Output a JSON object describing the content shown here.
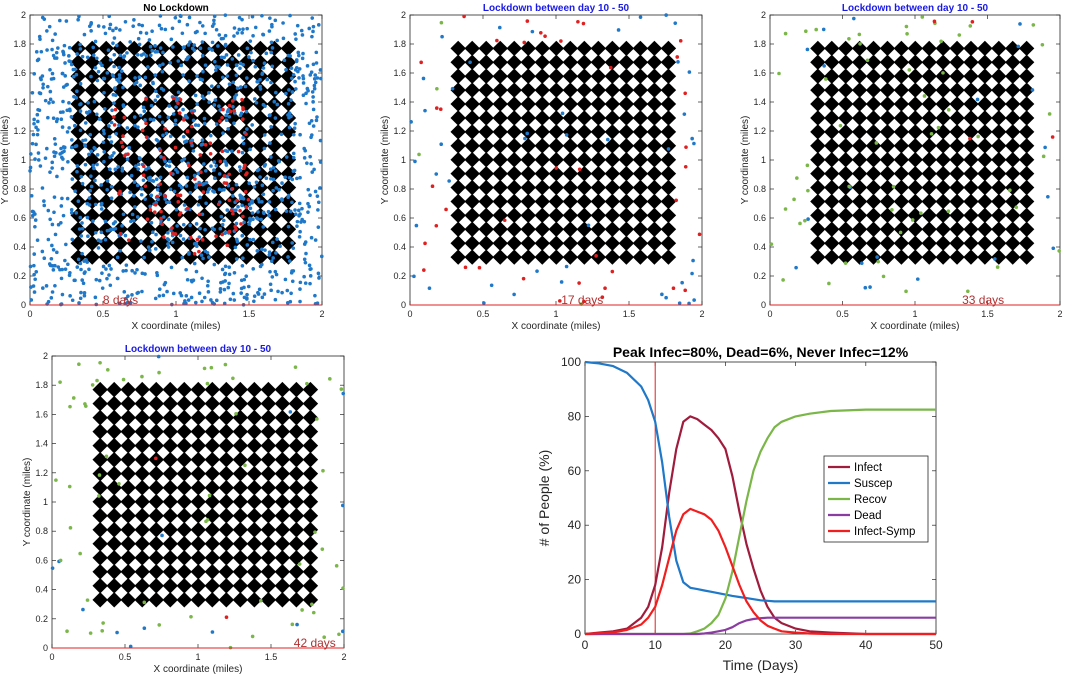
{
  "colors": {
    "susceptible": "#1f78c8",
    "infected": "#e02020",
    "recovered": "#7ab648",
    "building": "#000000",
    "title_blue": "#1a1ae6",
    "day_label": "#b03030"
  },
  "chart_data": [
    {
      "type": "scatter",
      "title": "No Lockdown",
      "day_label": "8 days",
      "xlabel": "X coordinate (miles)",
      "ylabel": "Y coordinate (miles)",
      "xlim": [
        0,
        2
      ],
      "ylim": [
        0,
        2
      ],
      "xticks": [
        "0",
        "0.5",
        "1",
        "1.5",
        "2"
      ],
      "yticks": [
        "0",
        "0.2",
        "0.4",
        "0.6",
        "0.8",
        "1",
        "1.2",
        "1.4",
        "1.6",
        "1.8",
        "2"
      ],
      "building_grid": {
        "min": 0.33,
        "max": 1.77,
        "count": 16
      },
      "population": {
        "susceptible": 1200,
        "infected": 110,
        "recovered": 0
      }
    },
    {
      "type": "scatter",
      "title": "Lockdown between day 10 - 50",
      "day_label": "17 days",
      "xlabel": "X coordinate (miles)",
      "ylabel": "Y coordinate (miles)",
      "xlim": [
        0,
        2
      ],
      "ylim": [
        0,
        2
      ],
      "xticks": [
        "0",
        "0.5",
        "1",
        "1.5",
        "2"
      ],
      "yticks": [
        "0",
        "0.2",
        "0.4",
        "0.6",
        "0.8",
        "1",
        "1.2",
        "1.4",
        "1.6",
        "1.8",
        "2"
      ],
      "building_grid": {
        "min": 0.33,
        "max": 1.77,
        "count": 16
      },
      "population": {
        "susceptible": 45,
        "infected": 40,
        "recovered": 4
      }
    },
    {
      "type": "scatter",
      "title": "Lockdown between day 10 - 50",
      "day_label": "33 days",
      "xlabel": "X coordinate (miles)",
      "ylabel": "Y coordinate (miles)",
      "xlim": [
        0,
        2
      ],
      "ylim": [
        0,
        2
      ],
      "xticks": [
        "0",
        "0.5",
        "1",
        "1.5",
        "2"
      ],
      "yticks": [
        "0",
        "0.2",
        "0.4",
        "0.6",
        "0.8",
        "1",
        "1.2",
        "1.4",
        "1.6",
        "1.8",
        "2"
      ],
      "building_grid": {
        "min": 0.33,
        "max": 1.77,
        "count": 16
      },
      "population": {
        "susceptible": 20,
        "infected": 4,
        "recovered": 55
      }
    },
    {
      "type": "scatter",
      "title": "Lockdown between day 10 - 50",
      "day_label": "42 days",
      "xlabel": "X coordinate (miles)",
      "ylabel": "Y coordinate (miles)",
      "xlim": [
        0,
        2
      ],
      "ylim": [
        0,
        2
      ],
      "xticks": [
        "0",
        "0.5",
        "1",
        "1.5",
        "2"
      ],
      "yticks": [
        "0",
        "0.2",
        "0.4",
        "0.6",
        "0.8",
        "1",
        "1.2",
        "1.4",
        "1.6",
        "1.8",
        "2"
      ],
      "building_grid": {
        "min": 0.33,
        "max": 1.77,
        "count": 16
      },
      "population": {
        "susceptible": 14,
        "infected": 2,
        "recovered": 60
      }
    },
    {
      "type": "line",
      "title": "Peak Infec=80%, Dead=6%, Never Infec=12%",
      "xlabel": "Time (Days)",
      "ylabel": "# of People (%)",
      "xlim": [
        0,
        50
      ],
      "ylim": [
        0,
        100
      ],
      "xticks": [
        "0",
        "10",
        "20",
        "30",
        "40",
        "50"
      ],
      "yticks": [
        "0",
        "20",
        "40",
        "60",
        "80",
        "100"
      ],
      "lockdown_start_day": 10,
      "x": [
        0,
        2,
        4,
        6,
        8,
        9,
        10,
        11,
        12,
        13,
        14,
        15,
        16,
        17,
        18,
        19,
        20,
        21,
        22,
        23,
        24,
        25,
        26,
        27,
        28,
        30,
        32,
        35,
        40,
        45,
        50
      ],
      "series": [
        {
          "name": "Infect",
          "color": "#a01c3c",
          "values": [
            0,
            0.5,
            1,
            2,
            6,
            10,
            18,
            32,
            52,
            68,
            78,
            80,
            79,
            77,
            75,
            72,
            68,
            58,
            45,
            33,
            24,
            16,
            10,
            6,
            4,
            2,
            1,
            0.5,
            0,
            0,
            0
          ]
        },
        {
          "name": "Suscep",
          "color": "#1f78c8",
          "values": [
            100,
            99.5,
            98.5,
            96,
            91,
            86,
            78,
            63,
            43,
            27,
            19,
            17,
            16.5,
            16,
            15.5,
            15,
            14.5,
            14,
            13.6,
            13.2,
            12.8,
            12.4,
            12.2,
            12,
            12,
            12,
            12,
            12,
            12,
            12,
            12
          ]
        },
        {
          "name": "Recov",
          "color": "#7ab648",
          "values": [
            0,
            0,
            0,
            0,
            0,
            0,
            0,
            0,
            0,
            0,
            0,
            0.2,
            1,
            2,
            4,
            7,
            13,
            23,
            36,
            49,
            60,
            67,
            72,
            76,
            78,
            80,
            81,
            82,
            82.5,
            82.5,
            82.5
          ]
        },
        {
          "name": "Dead",
          "color": "#8a3ca0",
          "values": [
            0,
            0,
            0,
            0,
            0,
            0,
            0,
            0,
            0,
            0,
            0,
            0,
            0,
            0.2,
            0.5,
            1,
            1.5,
            2.5,
            4,
            5,
            5.5,
            5.8,
            6,
            6,
            6,
            6,
            6,
            6,
            6,
            6,
            6
          ]
        },
        {
          "name": "Infect-Symp",
          "color": "#f01e1e",
          "values": [
            0,
            0.3,
            0.6,
            1.5,
            3.5,
            6,
            10,
            18,
            28,
            38,
            44,
            46,
            45,
            44,
            42,
            38,
            32,
            25,
            18,
            12,
            8,
            5,
            3,
            2,
            1,
            0.5,
            0.2,
            0,
            0,
            0,
            0
          ]
        }
      ]
    }
  ]
}
